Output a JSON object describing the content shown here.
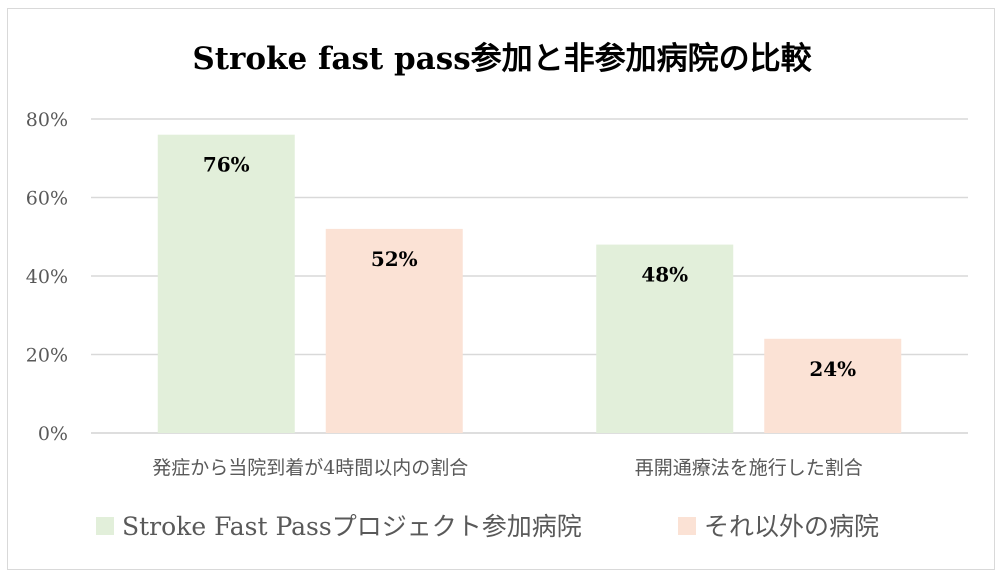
{
  "chart_data": {
    "type": "bar",
    "title": "Stroke fast pass参加と非参加病院の比較",
    "categories": [
      "発症から当院到着が4時間以内の割合",
      "再開通療法を施行した割合"
    ],
    "series": [
      {
        "name": "Stroke Fast Passプロジェクト参加病院",
        "values": [
          76,
          48
        ],
        "labels": [
          "76%",
          "48%"
        ],
        "color": "#e2efda"
      },
      {
        "name": "それ以外の病院",
        "values": [
          52,
          24
        ],
        "labels": [
          "52%",
          "24%"
        ],
        "color": "#fbe2d5"
      }
    ],
    "ylim": [
      0,
      80
    ],
    "yticks": [
      0,
      20,
      40,
      60,
      80
    ],
    "ytick_labels": [
      "0%",
      "20%",
      "40%",
      "60%",
      "80%"
    ],
    "grid": true,
    "legend_position": "bottom",
    "gridline_color": "#d9d9d9",
    "text_color": "#595959",
    "title_color": "#000000"
  }
}
